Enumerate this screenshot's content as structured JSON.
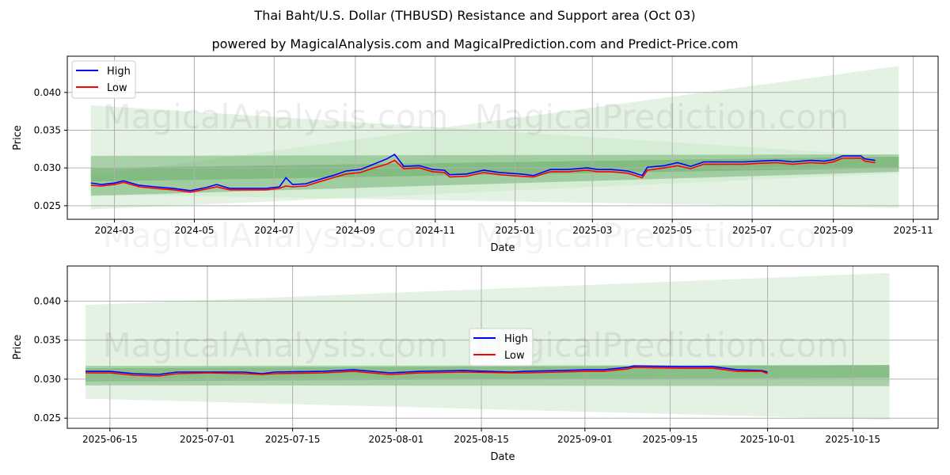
{
  "title": "Thai Baht/U.S. Dollar (THBUSD) Resistance and Support area (Oct 03)",
  "subtitle": "powered by MagicalAnalysis.com and MagicalPrediction.com and Predict-Price.com",
  "watermarks": [
    "MagicalAnalysis.com",
    "MagicalPrediction.com"
  ],
  "colors": {
    "high": "#0000ff",
    "low": "#ff0000",
    "band_light": "#c8e6c8",
    "band_dark": "#5fa85f"
  },
  "chart_data": [
    {
      "type": "line",
      "xlabel": "Date",
      "ylabel": "Price",
      "legend": [
        "High",
        "Low"
      ],
      "legend_placement": "upper-left",
      "grid": true,
      "ylim": [
        0.0232,
        0.0448
      ],
      "xlim": [
        "2024-01-25",
        "2025-11-20"
      ],
      "yticks": [
        "0.025",
        "0.030",
        "0.035",
        "0.040"
      ],
      "xticks": [
        "2024-03",
        "2024-05",
        "2024-07",
        "2024-09",
        "2024-11",
        "2025-01",
        "2025-03",
        "2025-05",
        "2025-07",
        "2025-09",
        "2025-11"
      ],
      "xtick_dates": [
        "2024-03-01",
        "2024-05-01",
        "2024-07-01",
        "2024-09-01",
        "2024-11-01",
        "2025-01-01",
        "2025-03-01",
        "2025-05-01",
        "2025-07-01",
        "2025-09-01",
        "2025-11-01"
      ],
      "bands": [
        {
          "start": "2024-02-12",
          "end": "2025-10-21",
          "left": [
            0.0245,
            0.0383
          ],
          "right": [
            0.0293,
            0.0315
          ],
          "shade": "light"
        },
        {
          "start": "2024-02-12",
          "end": "2025-10-21",
          "left": [
            0.0265,
            0.029
          ],
          "right": [
            0.0247,
            0.0435
          ],
          "shade": "light"
        },
        {
          "start": "2024-02-12",
          "end": "2025-10-21",
          "left": [
            0.0263,
            0.03
          ],
          "right": [
            0.0295,
            0.0315
          ],
          "shade": "dark"
        },
        {
          "start": "2024-02-12",
          "end": "2025-10-21",
          "left": [
            0.0282,
            0.0316
          ],
          "right": [
            0.03,
            0.0318
          ],
          "shade": "dark"
        }
      ],
      "dates": [
        "2024-02-12",
        "2024-02-20",
        "2024-03-01",
        "2024-03-08",
        "2024-03-20",
        "2024-04-01",
        "2024-04-15",
        "2024-04-28",
        "2024-05-10",
        "2024-05-18",
        "2024-05-28",
        "2024-06-10",
        "2024-06-25",
        "2024-07-05",
        "2024-07-10",
        "2024-07-15",
        "2024-07-25",
        "2024-08-05",
        "2024-08-15",
        "2024-08-25",
        "2024-09-05",
        "2024-09-15",
        "2024-09-25",
        "2024-10-01",
        "2024-10-08",
        "2024-10-20",
        "2024-10-30",
        "2024-11-08",
        "2024-11-12",
        "2024-11-25",
        "2024-12-08",
        "2024-12-20",
        "2025-01-05",
        "2025-01-15",
        "2025-01-28",
        "2025-02-10",
        "2025-02-25",
        "2025-03-05",
        "2025-03-15",
        "2025-03-28",
        "2025-04-08",
        "2025-04-12",
        "2025-04-25",
        "2025-05-05",
        "2025-05-15",
        "2025-05-25",
        "2025-06-10",
        "2025-06-25",
        "2025-07-05",
        "2025-07-20",
        "2025-08-01",
        "2025-08-15",
        "2025-08-25",
        "2025-09-01",
        "2025-09-08",
        "2025-09-22",
        "2025-09-25",
        "2025-10-03"
      ],
      "series": [
        {
          "name": "High",
          "values": [
            0.028,
            0.0278,
            0.028,
            0.0283,
            0.0277,
            0.0275,
            0.0273,
            0.027,
            0.0274,
            0.0278,
            0.0273,
            0.0273,
            0.0273,
            0.0275,
            0.0287,
            0.0278,
            0.0279,
            0.0285,
            0.029,
            0.0296,
            0.0298,
            0.0305,
            0.0312,
            0.0318,
            0.0302,
            0.0303,
            0.0298,
            0.0297,
            0.0291,
            0.0292,
            0.0297,
            0.0294,
            0.0292,
            0.029,
            0.0298,
            0.0298,
            0.03,
            0.0298,
            0.0298,
            0.0296,
            0.029,
            0.0301,
            0.0303,
            0.0307,
            0.0302,
            0.0308,
            0.0308,
            0.0308,
            0.0309,
            0.031,
            0.0308,
            0.031,
            0.0309,
            0.0311,
            0.0316,
            0.0316,
            0.0312,
            0.031
          ]
        },
        {
          "name": "Low",
          "values": [
            0.0277,
            0.0276,
            0.0278,
            0.0281,
            0.0275,
            0.0273,
            0.0271,
            0.0268,
            0.0272,
            0.0275,
            0.0271,
            0.0271,
            0.0271,
            0.0273,
            0.0276,
            0.0275,
            0.0276,
            0.0282,
            0.0287,
            0.0292,
            0.0294,
            0.03,
            0.0305,
            0.031,
            0.0299,
            0.03,
            0.0295,
            0.0294,
            0.0288,
            0.0289,
            0.0294,
            0.0291,
            0.0289,
            0.0288,
            0.0295,
            0.0295,
            0.0297,
            0.0295,
            0.0295,
            0.0293,
            0.0287,
            0.0297,
            0.03,
            0.0303,
            0.0299,
            0.0305,
            0.0305,
            0.0305,
            0.0306,
            0.0307,
            0.0305,
            0.0307,
            0.0306,
            0.0308,
            0.0313,
            0.0313,
            0.0309,
            0.0307
          ]
        }
      ]
    },
    {
      "type": "line",
      "xlabel": "Date",
      "ylabel": "Price",
      "legend": [
        "High",
        "Low"
      ],
      "legend_placement": "center",
      "grid": true,
      "ylim": [
        0.0237,
        0.0445
      ],
      "xlim": [
        "2025-06-08",
        "2025-10-29"
      ],
      "yticks": [
        "0.025",
        "0.030",
        "0.035",
        "0.040"
      ],
      "xticks": [
        "2025-06-15",
        "2025-07-01",
        "2025-07-15",
        "2025-08-01",
        "2025-08-15",
        "2025-09-01",
        "2025-09-15",
        "2025-10-01",
        "2025-10-15"
      ],
      "bands": [
        {
          "start": "2025-06-11",
          "end": "2025-10-21",
          "left": [
            0.0275,
            0.0395
          ],
          "right": [
            0.0248,
            0.0436
          ],
          "shade": "light"
        },
        {
          "start": "2025-06-11",
          "end": "2025-10-21",
          "left": [
            0.0292,
            0.0317
          ],
          "right": [
            0.0291,
            0.0318
          ],
          "shade": "dark"
        },
        {
          "start": "2025-06-11",
          "end": "2025-10-21",
          "left": [
            0.0297,
            0.0314
          ],
          "right": [
            0.0302,
            0.0318
          ],
          "shade": "dark"
        }
      ],
      "dates": [
        "2025-06-11",
        "2025-06-15",
        "2025-06-19",
        "2025-06-23",
        "2025-06-26",
        "2025-07-01",
        "2025-07-07",
        "2025-07-10",
        "2025-07-12",
        "2025-07-20",
        "2025-07-25",
        "2025-07-31",
        "2025-08-05",
        "2025-08-12",
        "2025-08-20",
        "2025-08-22",
        "2025-08-28",
        "2025-09-01",
        "2025-09-04",
        "2025-09-08",
        "2025-09-09",
        "2025-09-17",
        "2025-09-22",
        "2025-09-26",
        "2025-09-30",
        "2025-10-01"
      ],
      "series": [
        {
          "name": "High",
          "values": [
            0.031,
            0.031,
            0.0307,
            0.0306,
            0.0309,
            0.0309,
            0.0309,
            0.0307,
            0.0309,
            0.031,
            0.0312,
            0.0308,
            0.031,
            0.0311,
            0.0309,
            0.031,
            0.0311,
            0.0312,
            0.0312,
            0.0315,
            0.0317,
            0.0316,
            0.0316,
            0.0312,
            0.0311,
            0.0309
          ]
        },
        {
          "name": "Low",
          "values": [
            0.0308,
            0.0308,
            0.0305,
            0.0304,
            0.0307,
            0.0308,
            0.0307,
            0.0306,
            0.0307,
            0.0308,
            0.031,
            0.0306,
            0.0308,
            0.0309,
            0.0308,
            0.0308,
            0.0309,
            0.031,
            0.031,
            0.0313,
            0.0315,
            0.0314,
            0.0314,
            0.031,
            0.031,
            0.0307
          ]
        }
      ]
    }
  ]
}
